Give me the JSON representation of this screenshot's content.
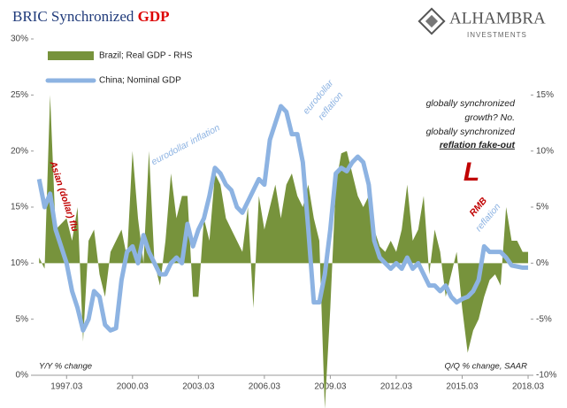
{
  "chart_data": {
    "type": "dual_area_line",
    "title_parts": [
      "BRIC Synchronized",
      "GDP"
    ],
    "logo": [
      "ALHAMBRA",
      "INVESTMENTS"
    ],
    "annotations": {
      "asian_flu": "Asian (dollar) flu",
      "eurodollar_inflation": "eurodollar inflation",
      "eurodollar_reflation": [
        "eurodollar",
        "reflation"
      ],
      "sync": [
        "globally synchronized",
        "growth?  No.",
        "globally synchronized",
        "reflation fake-out"
      ],
      "big_l": "L",
      "rmb": [
        "RMB",
        "reflation"
      ],
      "left_note": "Y/Y % change",
      "right_note": "Q/Q % change, SAAR"
    },
    "x": [
      1995.75,
      1996,
      1996.25,
      1996.5,
      1996.75,
      1997,
      1997.25,
      1997.5,
      1997.75,
      1998,
      1998.25,
      1998.5,
      1998.75,
      1999,
      1999.25,
      1999.5,
      1999.75,
      2000,
      2000.25,
      2000.5,
      2000.75,
      2001,
      2001.25,
      2001.5,
      2001.75,
      2002,
      2002.25,
      2002.5,
      2002.75,
      2003,
      2003.25,
      2003.5,
      2003.75,
      2004,
      2004.25,
      2004.5,
      2004.75,
      2005,
      2005.25,
      2005.5,
      2005.75,
      2006,
      2006.25,
      2006.5,
      2006.75,
      2007,
      2007.25,
      2007.5,
      2007.75,
      2008,
      2008.25,
      2008.5,
      2008.75,
      2009,
      2009.25,
      2009.5,
      2009.75,
      2010,
      2010.25,
      2010.5,
      2010.75,
      2011,
      2011.25,
      2011.5,
      2011.75,
      2012,
      2012.25,
      2012.5,
      2012.75,
      2013,
      2013.25,
      2013.5,
      2013.75,
      2014,
      2014.25,
      2014.5,
      2014.75,
      2015,
      2015.25,
      2015.5,
      2015.75,
      2016,
      2016.25,
      2016.5,
      2016.75,
      2017,
      2017.25,
      2017.5,
      2017.75,
      2018
    ],
    "series": [
      {
        "name": "Brazil; Real GDP - RHS",
        "color": "#77933c",
        "axis": "y2",
        "kind": "area",
        "values": [
          0.5,
          -0.5,
          15,
          3,
          3.5,
          4,
          2,
          5,
          -7,
          2,
          3,
          -1,
          -3,
          1,
          2,
          3,
          0.5,
          10,
          4,
          0,
          10,
          0,
          -2,
          2,
          8,
          4,
          6,
          6,
          -3,
          -3,
          4,
          2,
          8,
          7,
          4,
          3,
          2,
          1,
          5,
          -4,
          6,
          3,
          5,
          7,
          4,
          7,
          8,
          6,
          5,
          7,
          4,
          2,
          -13,
          -4,
          7,
          9.8,
          10,
          8,
          6,
          5,
          6,
          3,
          1.5,
          1,
          2,
          1,
          3,
          7,
          2,
          3,
          6,
          -1,
          3,
          1,
          -3,
          -1,
          1,
          -4,
          -8,
          -6,
          -5,
          -3,
          -1.5,
          -1,
          -2,
          5,
          2,
          2,
          1,
          1
        ]
      },
      {
        "name": "China; Nominal GDP",
        "color": "#8db3e2",
        "axis": "y",
        "kind": "line",
        "values": [
          17.5,
          15,
          16.2,
          13,
          11.5,
          10,
          7.5,
          6,
          4,
          5,
          7.5,
          7,
          4.5,
          4,
          4.2,
          8.5,
          11,
          11.5,
          10,
          12.5,
          11,
          10,
          9,
          9,
          10,
          10.5,
          10,
          13.5,
          11.5,
          13,
          14,
          16,
          18.5,
          18,
          17,
          16.5,
          15,
          14.5,
          15.5,
          16.5,
          17.5,
          17,
          21,
          22.5,
          24,
          23.5,
          21.5,
          21.5,
          19,
          13,
          6.5,
          6.5,
          9,
          13,
          18,
          18.5,
          18.2,
          19,
          19.5,
          19,
          17,
          12,
          10.5,
          10,
          9.5,
          10,
          9.5,
          10.5,
          9.5,
          10,
          9,
          8,
          8,
          7.5,
          8,
          7,
          6.5,
          6.8,
          7,
          7.5,
          8.5,
          11.5,
          11,
          11,
          11,
          10.5,
          9.8,
          9.7,
          9.6,
          9.6
        ]
      }
    ],
    "xlim": [
      1995.5,
      2018.12
    ],
    "xticks": [
      {
        "value": 1997,
        "label": "1997.03"
      },
      {
        "value": 2000,
        "label": "2000.03"
      },
      {
        "value": 2003,
        "label": "2003.03"
      },
      {
        "value": 2006,
        "label": "2006.03"
      },
      {
        "value": 2009,
        "label": "2009.03"
      },
      {
        "value": 2012,
        "label": "2012.03"
      },
      {
        "value": 2015,
        "label": "2015.03"
      },
      {
        "value": 2018,
        "label": "2018.03"
      }
    ],
    "ylim": [
      0,
      30
    ],
    "yticks": [
      {
        "value": 0,
        "label": "0%"
      },
      {
        "value": 5,
        "label": "5%"
      },
      {
        "value": 10,
        "label": "10%"
      },
      {
        "value": 15,
        "label": "15%"
      },
      {
        "value": 20,
        "label": "20%"
      },
      {
        "value": 25,
        "label": "25%"
      },
      {
        "value": 30,
        "label": "30%"
      }
    ],
    "y2lim": [
      -10,
      20
    ],
    "y2ticks": [
      {
        "value": -10,
        "label": "-10%"
      },
      {
        "value": -5,
        "label": "-5%"
      },
      {
        "value": 0,
        "label": "0%"
      },
      {
        "value": 5,
        "label": "5%"
      },
      {
        "value": 10,
        "label": "10%"
      },
      {
        "value": 15,
        "label": "15%"
      }
    ]
  }
}
